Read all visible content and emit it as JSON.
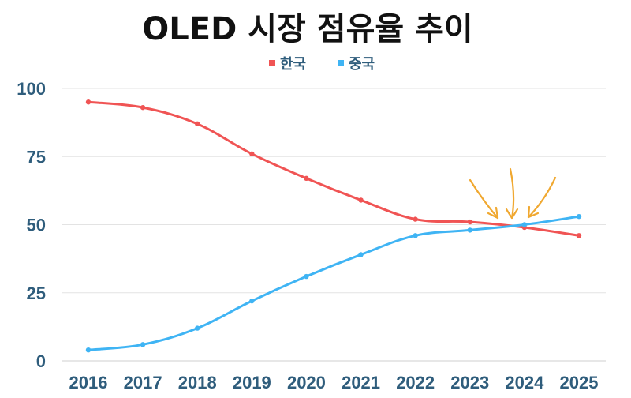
{
  "chart_data": {
    "type": "line",
    "title": "OLED 시장 점유율 추이",
    "categories": [
      "2016",
      "2017",
      "2018",
      "2019",
      "2020",
      "2021",
      "2022",
      "2023",
      "2024",
      "2025"
    ],
    "series": [
      {
        "name": "한국",
        "color": "#f05454",
        "values": [
          95,
          93,
          87,
          76,
          67,
          59,
          52,
          51,
          49,
          46
        ]
      },
      {
        "name": "중국",
        "color": "#3fb4f4",
        "values": [
          4,
          6,
          12,
          22,
          31,
          39,
          46,
          48,
          50,
          53
        ]
      }
    ],
    "yticks": [
      0,
      25,
      50,
      75,
      100
    ],
    "ylim": [
      0,
      100
    ],
    "xlabel": "",
    "ylabel": "",
    "grid": true,
    "legend": "top-center",
    "annotation": {
      "type": "arrows",
      "target_category": "2024",
      "color": "#f0a830"
    }
  }
}
